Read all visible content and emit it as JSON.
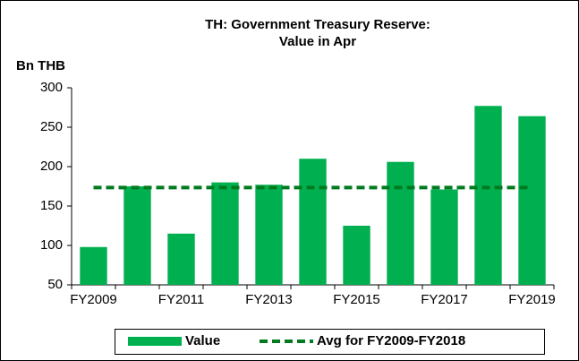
{
  "chart_data": {
    "type": "bar",
    "title": [
      "TH: Government Treasury Reserve:",
      "Value in Apr"
    ],
    "y_label": "Bn THB",
    "categories": [
      "FY2009",
      null,
      "FY2011",
      null,
      "FY2013",
      null,
      "FY2015",
      null,
      "FY2017",
      null,
      "FY2019"
    ],
    "series": [
      {
        "name": "Value",
        "type": "bar",
        "color": "#00b050",
        "values": [
          98,
          175,
          115,
          180,
          177,
          210,
          125,
          206,
          171,
          277,
          264
        ]
      },
      {
        "name": "Avg for FY2009-FY2018",
        "type": "line",
        "color": "#007a1e",
        "dashed": true,
        "values": [
          173.4,
          173.4,
          173.4,
          173.4,
          173.4,
          173.4,
          173.4,
          173.4,
          173.4,
          173.4,
          173.4
        ]
      }
    ],
    "ylim": [
      50,
      300
    ],
    "yticks": [
      50,
      100,
      150,
      200,
      250,
      300
    ],
    "grid": false,
    "legend": "bottom"
  }
}
